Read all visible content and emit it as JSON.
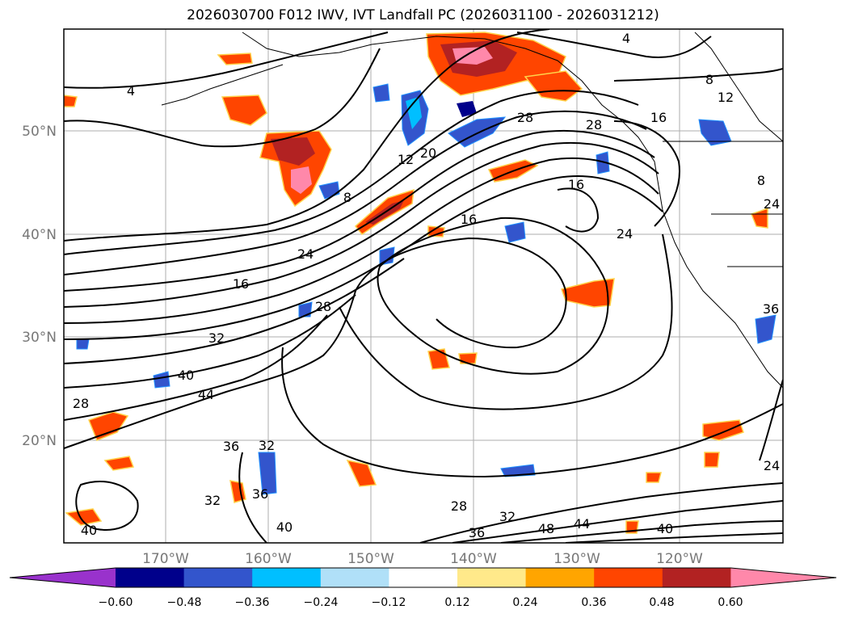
{
  "title": "2026030700 F012 IWV, IVT Landfall PC (2026031100 - 2026031212)",
  "map": {
    "lat_labels": [
      "50°N",
      "40°N",
      "30°N",
      "20°N"
    ],
    "lon_labels": [
      "170°W",
      "160°W",
      "150°W",
      "140°W",
      "130°W",
      "120°W"
    ],
    "contour_labels": [
      "4",
      "4",
      "8",
      "8",
      "8",
      "12",
      "12",
      "16",
      "16",
      "16",
      "16",
      "20",
      "24",
      "24",
      "24",
      "24",
      "28",
      "28",
      "28",
      "28",
      "28",
      "32",
      "32",
      "32",
      "32",
      "36",
      "36",
      "36",
      "36",
      "40",
      "40",
      "40",
      "40",
      "44",
      "44",
      "48"
    ],
    "gridlines": true
  },
  "colorbar": {
    "extend": "both",
    "ticks": [
      "−0.60",
      "−0.48",
      "−0.36",
      "−0.24",
      "−0.12",
      "0.12",
      "0.24",
      "0.36",
      "0.48",
      "0.60"
    ],
    "colors": [
      "#9932CC",
      "#00008B",
      "#3355CC",
      "#00BFFF",
      "#B0E0F8",
      "#FFFFFF",
      "#FFE98A",
      "#FFA500",
      "#FF4500",
      "#B22222",
      "#FF88AA"
    ]
  }
}
